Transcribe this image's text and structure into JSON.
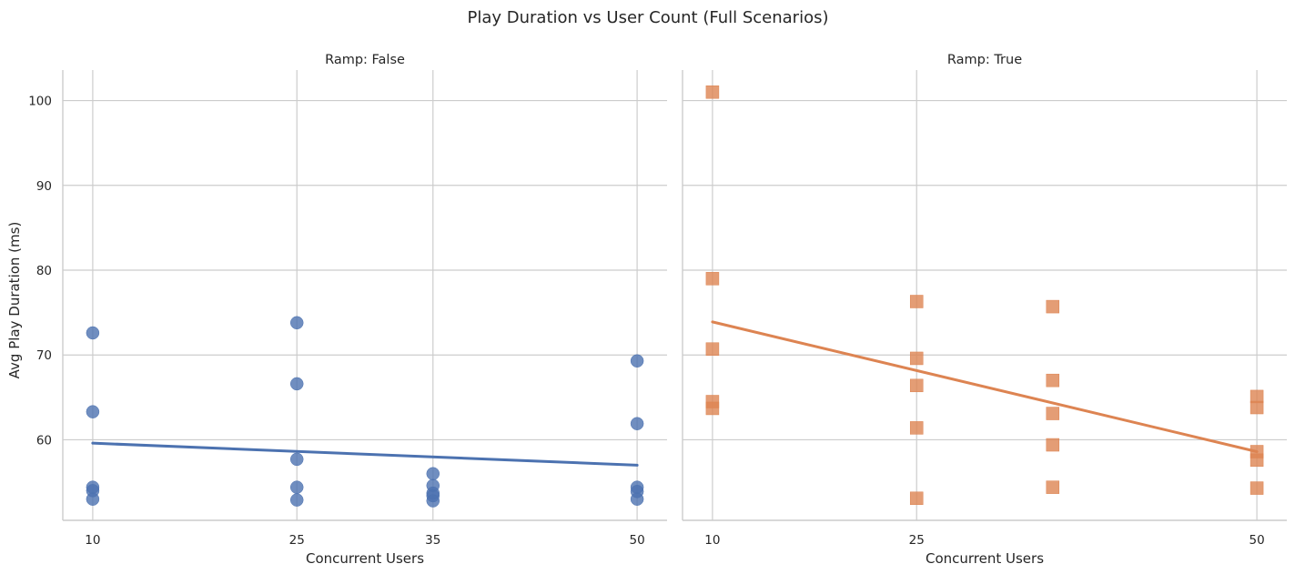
{
  "figure": {
    "title": "Play Duration vs User Count (Full Scenarios)"
  },
  "chart_data": [
    {
      "type": "scatter",
      "title": "Ramp: False",
      "xlabel": "Concurrent Users",
      "ylabel": "Avg Play Duration (ms)",
      "x_ticks": [
        10,
        25,
        35,
        50
      ],
      "y_ticks": [
        60,
        70,
        80,
        90,
        100
      ],
      "xlim": [
        7.8,
        52.2
      ],
      "ylim": [
        50.5,
        103.6
      ],
      "grid": true,
      "marker": "circle",
      "color": "#4c72b0",
      "points": [
        [
          10,
          72.6
        ],
        [
          10,
          63.3
        ],
        [
          10,
          54.4
        ],
        [
          10,
          54.0
        ],
        [
          10,
          53.0
        ],
        [
          25,
          73.8
        ],
        [
          25,
          66.6
        ],
        [
          25,
          57.7
        ],
        [
          25,
          54.4
        ],
        [
          25,
          52.9
        ],
        [
          35,
          56.0
        ],
        [
          35,
          54.6
        ],
        [
          35,
          53.7
        ],
        [
          35,
          53.4
        ],
        [
          35,
          52.8
        ],
        [
          50,
          69.3
        ],
        [
          50,
          61.9
        ],
        [
          50,
          54.4
        ],
        [
          50,
          53.9
        ],
        [
          50,
          53.0
        ]
      ],
      "fit_line": {
        "x": [
          10,
          50
        ],
        "y": [
          59.6,
          57.0
        ]
      }
    },
    {
      "type": "scatter",
      "title": "Ramp: True",
      "xlabel": "Concurrent Users",
      "ylabel": "",
      "x_ticks": [
        10,
        25,
        50
      ],
      "y_ticks": [
        60,
        70,
        80,
        90,
        100
      ],
      "xlim": [
        7.8,
        52.2
      ],
      "ylim": [
        50.5,
        103.6
      ],
      "grid": true,
      "marker": "square",
      "color": "#dd8452",
      "points": [
        [
          10,
          101.0
        ],
        [
          10,
          79.0
        ],
        [
          10,
          70.7
        ],
        [
          10,
          64.5
        ],
        [
          10,
          63.7
        ],
        [
          25,
          76.3
        ],
        [
          25,
          69.6
        ],
        [
          25,
          66.4
        ],
        [
          25,
          61.4
        ],
        [
          25,
          53.1
        ],
        [
          35,
          75.7
        ],
        [
          35,
          67.0
        ],
        [
          35,
          63.1
        ],
        [
          35,
          59.4
        ],
        [
          35,
          54.4
        ],
        [
          50,
          65.1
        ],
        [
          50,
          63.8
        ],
        [
          50,
          58.6
        ],
        [
          50,
          57.6
        ],
        [
          50,
          54.3
        ]
      ],
      "fit_line": {
        "x": [
          10,
          50
        ],
        "y": [
          73.9,
          58.6
        ]
      }
    }
  ]
}
